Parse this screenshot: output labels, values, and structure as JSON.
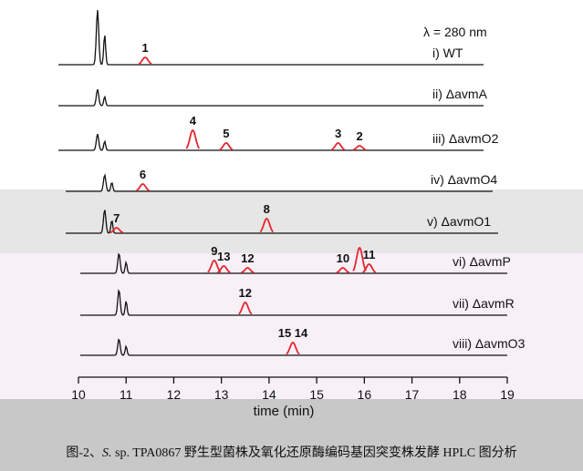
{
  "chart_data": {
    "type": "line",
    "annotation": "λ = 280 nm",
    "xlabel": "time (min)",
    "xlim": [
      10,
      19
    ],
    "xticks": [
      10,
      11,
      12,
      13,
      14,
      15,
      16,
      17,
      18,
      19
    ],
    "traces": [
      {
        "label": "i) WT",
        "peaks": [
          {
            "id": "1",
            "x": 11.4,
            "h": 8,
            "color": "#e8262e"
          }
        ]
      },
      {
        "label": "ii) ΔavmA",
        "peaks": []
      },
      {
        "label": "iii) ΔavmO2",
        "peaks": [
          {
            "id": "4",
            "x": 12.4,
            "h": 22,
            "color": "#e8262e"
          },
          {
            "id": "5",
            "x": 13.1,
            "h": 8,
            "color": "#e8262e"
          },
          {
            "id": "3",
            "x": 15.45,
            "h": 8,
            "color": "#e8262e"
          },
          {
            "id": "2",
            "x": 15.9,
            "h": 5,
            "color": "#e8262e"
          }
        ]
      },
      {
        "label": "iv) ΔavmO4",
        "peaks": [
          {
            "id": "6",
            "x": 11.35,
            "h": 8,
            "color": "#e8262e"
          }
        ]
      },
      {
        "label": "v) ΔavmO1",
        "peaks": [
          {
            "id": "7",
            "x": 10.8,
            "h": 6,
            "color": "#e8262e"
          },
          {
            "id": "8",
            "x": 13.95,
            "h": 16,
            "color": "#e8262e"
          }
        ]
      },
      {
        "label": "vi) ΔavmP",
        "peaks": [
          {
            "id": "9",
            "x": 12.85,
            "h": 14,
            "color": "#e8262e"
          },
          {
            "id": "13",
            "x": 13.05,
            "h": 8,
            "color": "#e8262e"
          },
          {
            "id": "12",
            "x": 13.55,
            "h": 6,
            "color": "#e8262e"
          },
          {
            "id": "10",
            "x": 15.55,
            "h": 6,
            "color": "#e8262e"
          },
          {
            "id": "",
            "x": 15.9,
            "h": 28,
            "color": "#e8262e"
          },
          {
            "id": "11",
            "x": 16.1,
            "h": 10,
            "color": "#e8262e"
          }
        ]
      },
      {
        "label": "vii) ΔavmR",
        "peaks": [
          {
            "id": "12",
            "x": 13.5,
            "h": 14,
            "color": "#e8262e"
          }
        ]
      },
      {
        "label": "viii) ΔavmO3",
        "peaks": [
          {
            "id": "15 14",
            "x": 14.5,
            "h": 14,
            "color": "#e8262e"
          }
        ]
      }
    ]
  },
  "caption": {
    "prefix": "图-2、",
    "species": "S.",
    "rest": " sp. TPA0867 野生型菌株及氧化还原酶编码基因突变株发酵 HPLC 图分析"
  }
}
